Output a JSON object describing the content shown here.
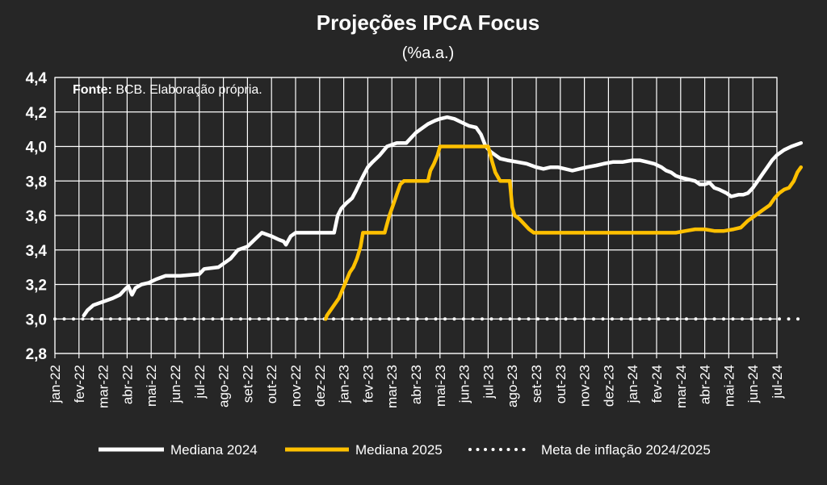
{
  "chart_data": {
    "type": "line",
    "title": "Projeções IPCA Focus",
    "subtitle": "(%a.a.)",
    "source_label": "Fonte:",
    "source_text": " BCB. Elaboração própria.",
    "xlabel": "",
    "ylabel": "",
    "ylim": [
      2.8,
      4.4
    ],
    "yticks": [
      "2,8",
      "3,0",
      "3,2",
      "3,4",
      "3,6",
      "3,8",
      "4,0",
      "4,2",
      "4,4"
    ],
    "grid": true,
    "legend_position": "bottom",
    "categories": [
      "jan-22",
      "fev-22",
      "mar-22",
      "abr-22",
      "mai-22",
      "jun-22",
      "jul-22",
      "ago-22",
      "set-22",
      "out-22",
      "nov-22",
      "dez-22",
      "jan-23",
      "fev-23",
      "mar-23",
      "abr-23",
      "mai-23",
      "jun-23",
      "jul-23",
      "ago-23",
      "set-23",
      "out-23",
      "nov-23",
      "dez-23",
      "jan-24",
      "fev-24",
      "mar-24",
      "abr-24",
      "mai-24",
      "jun-24",
      "jul-24"
    ],
    "series": [
      {
        "name": "Mediana 2024",
        "color": "#ffffff",
        "style": "solid",
        "points": [
          [
            1.2,
            3.02
          ],
          [
            1.35,
            3.05
          ],
          [
            1.6,
            3.08
          ],
          [
            2.0,
            3.1
          ],
          [
            2.4,
            3.12
          ],
          [
            2.7,
            3.14
          ],
          [
            2.9,
            3.17
          ],
          [
            3.05,
            3.19
          ],
          [
            3.2,
            3.14
          ],
          [
            3.35,
            3.18
          ],
          [
            3.6,
            3.2
          ],
          [
            3.9,
            3.21
          ],
          [
            4.2,
            3.23
          ],
          [
            4.6,
            3.25
          ],
          [
            5.2,
            3.25
          ],
          [
            6.0,
            3.26
          ],
          [
            6.2,
            3.29
          ],
          [
            6.8,
            3.3
          ],
          [
            7.3,
            3.35
          ],
          [
            7.6,
            3.4
          ],
          [
            8.0,
            3.42
          ],
          [
            8.3,
            3.46
          ],
          [
            8.6,
            3.5
          ],
          [
            9.0,
            3.48
          ],
          [
            9.3,
            3.46
          ],
          [
            9.5,
            3.45
          ],
          [
            9.6,
            3.43
          ],
          [
            9.8,
            3.48
          ],
          [
            10.0,
            3.5
          ],
          [
            11.0,
            3.5
          ],
          [
            11.6,
            3.5
          ],
          [
            11.75,
            3.6
          ],
          [
            11.9,
            3.64
          ],
          [
            12.1,
            3.67
          ],
          [
            12.35,
            3.7
          ],
          [
            12.5,
            3.74
          ],
          [
            12.7,
            3.8
          ],
          [
            12.85,
            3.84
          ],
          [
            13.0,
            3.88
          ],
          [
            13.2,
            3.91
          ],
          [
            13.5,
            3.95
          ],
          [
            13.8,
            4.0
          ],
          [
            14.2,
            4.02
          ],
          [
            14.6,
            4.02
          ],
          [
            14.8,
            4.05
          ],
          [
            15.0,
            4.08
          ],
          [
            15.2,
            4.1
          ],
          [
            15.5,
            4.13
          ],
          [
            15.8,
            4.15
          ],
          [
            16.0,
            4.16
          ],
          [
            16.3,
            4.17
          ],
          [
            16.6,
            4.16
          ],
          [
            16.9,
            4.14
          ],
          [
            17.2,
            4.12
          ],
          [
            17.5,
            4.11
          ],
          [
            17.7,
            4.07
          ],
          [
            17.9,
            4.0
          ],
          [
            18.1,
            3.97
          ],
          [
            18.3,
            3.95
          ],
          [
            18.5,
            3.93
          ],
          [
            18.8,
            3.92
          ],
          [
            19.2,
            3.91
          ],
          [
            19.6,
            3.9
          ],
          [
            20.0,
            3.88
          ],
          [
            20.3,
            3.87
          ],
          [
            20.6,
            3.88
          ],
          [
            20.9,
            3.88
          ],
          [
            21.2,
            3.87
          ],
          [
            21.5,
            3.86
          ],
          [
            21.8,
            3.87
          ],
          [
            22.1,
            3.88
          ],
          [
            22.5,
            3.89
          ],
          [
            22.8,
            3.9
          ],
          [
            23.2,
            3.91
          ],
          [
            23.6,
            3.91
          ],
          [
            24.0,
            3.92
          ],
          [
            24.3,
            3.92
          ],
          [
            24.6,
            3.91
          ],
          [
            24.9,
            3.9
          ],
          [
            25.2,
            3.88
          ],
          [
            25.4,
            3.86
          ],
          [
            25.6,
            3.85
          ],
          [
            25.8,
            3.83
          ],
          [
            26.0,
            3.82
          ],
          [
            26.3,
            3.81
          ],
          [
            26.6,
            3.8
          ],
          [
            26.8,
            3.78
          ],
          [
            27.0,
            3.78
          ],
          [
            27.2,
            3.79
          ],
          [
            27.4,
            3.76
          ],
          [
            27.6,
            3.75
          ],
          [
            27.9,
            3.73
          ],
          [
            28.1,
            3.71
          ],
          [
            28.4,
            3.72
          ],
          [
            28.6,
            3.72
          ],
          [
            28.8,
            3.73
          ],
          [
            29.0,
            3.76
          ],
          [
            29.2,
            3.8
          ],
          [
            29.4,
            3.84
          ],
          [
            29.6,
            3.88
          ],
          [
            29.8,
            3.92
          ],
          [
            30.0,
            3.95
          ],
          [
            30.3,
            3.98
          ],
          [
            30.6,
            4.0
          ],
          [
            30.8,
            4.01
          ],
          [
            31.0,
            4.02
          ]
        ]
      },
      {
        "name": "Mediana 2025",
        "color": "#ffc000",
        "style": "solid",
        "points": [
          [
            11.25,
            3.0
          ],
          [
            11.3,
            3.02
          ],
          [
            11.45,
            3.05
          ],
          [
            11.6,
            3.08
          ],
          [
            11.8,
            3.12
          ],
          [
            11.95,
            3.17
          ],
          [
            12.1,
            3.22
          ],
          [
            12.25,
            3.27
          ],
          [
            12.4,
            3.3
          ],
          [
            12.55,
            3.35
          ],
          [
            12.7,
            3.42
          ],
          [
            12.8,
            3.5
          ],
          [
            13.0,
            3.5
          ],
          [
            13.7,
            3.5
          ],
          [
            13.8,
            3.55
          ],
          [
            13.9,
            3.6
          ],
          [
            14.05,
            3.66
          ],
          [
            14.2,
            3.72
          ],
          [
            14.35,
            3.78
          ],
          [
            14.5,
            3.8
          ],
          [
            15.5,
            3.8
          ],
          [
            15.6,
            3.86
          ],
          [
            15.75,
            3.9
          ],
          [
            15.9,
            3.95
          ],
          [
            16.0,
            4.0
          ],
          [
            18.0,
            4.0
          ],
          [
            18.15,
            3.92
          ],
          [
            18.3,
            3.85
          ],
          [
            18.5,
            3.8
          ],
          [
            18.9,
            3.8
          ],
          [
            19.0,
            3.65
          ],
          [
            19.1,
            3.6
          ],
          [
            19.3,
            3.58
          ],
          [
            19.5,
            3.55
          ],
          [
            19.7,
            3.52
          ],
          [
            19.9,
            3.5
          ],
          [
            22.0,
            3.5
          ],
          [
            24.0,
            3.5
          ],
          [
            25.8,
            3.5
          ],
          [
            26.2,
            3.51
          ],
          [
            26.6,
            3.52
          ],
          [
            27.0,
            3.52
          ],
          [
            27.4,
            3.51
          ],
          [
            27.8,
            3.51
          ],
          [
            28.2,
            3.52
          ],
          [
            28.5,
            3.53
          ],
          [
            28.8,
            3.57
          ],
          [
            29.1,
            3.6
          ],
          [
            29.4,
            3.63
          ],
          [
            29.7,
            3.66
          ],
          [
            29.9,
            3.7
          ],
          [
            30.1,
            3.73
          ],
          [
            30.3,
            3.75
          ],
          [
            30.5,
            3.76
          ],
          [
            30.7,
            3.8
          ],
          [
            30.85,
            3.85
          ],
          [
            31.0,
            3.88
          ]
        ]
      },
      {
        "name": "Meta de inflação 2024/2025",
        "color": "#ffffff",
        "style": "dotted",
        "points": [
          [
            0,
            3.0
          ],
          [
            31.0,
            3.0
          ]
        ]
      }
    ]
  }
}
